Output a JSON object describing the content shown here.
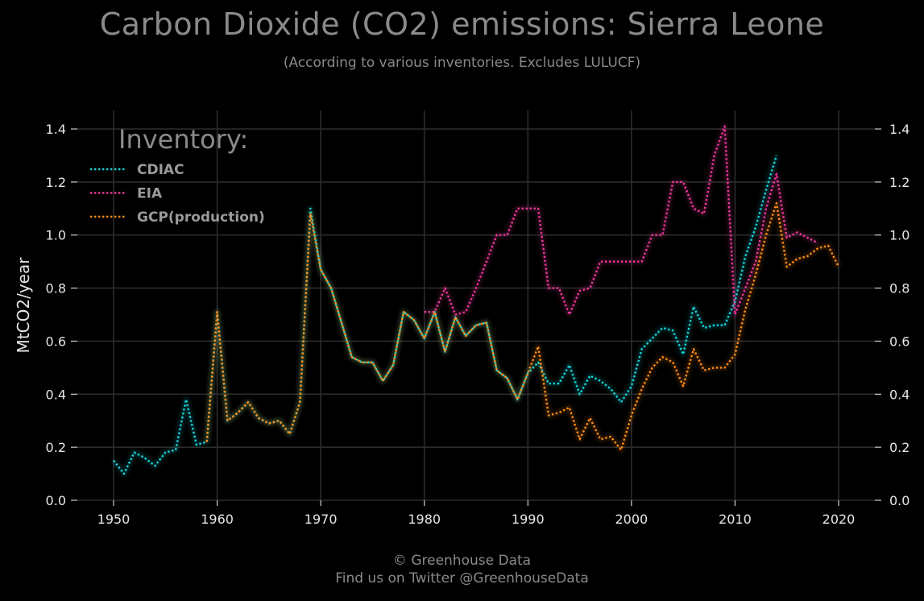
{
  "title": "Carbon Dioxide (CO2) emissions: Sierra Leone",
  "subtitle": "(According to various inventories. Excludes LULUCF)",
  "footer": {
    "line1": "© Greenhouse Data",
    "line2": "Find us on Twitter @GreenhouseData"
  },
  "chart_data": {
    "type": "line",
    "ylabel": "MtCO2/year",
    "xlim": [
      1946.5,
      2023.5
    ],
    "ylim": [
      0.0,
      1.47
    ],
    "x_ticks": [
      1950,
      1960,
      1970,
      1980,
      1990,
      2000,
      2010,
      2020
    ],
    "y_ticks": [
      0.0,
      0.2,
      0.4,
      0.6,
      0.8,
      1.0,
      1.2,
      1.4
    ],
    "y_tick_labels": [
      "0.0",
      "0.2",
      "0.4",
      "0.6",
      "0.8",
      "1.0",
      "1.2",
      "1.4"
    ],
    "grid": true,
    "legend": {
      "title": "Inventory:",
      "placement": "top-left"
    },
    "series": [
      {
        "name": "CDIAC",
        "color": "#17d4d8",
        "x": [
          1950,
          1951,
          1952,
          1953,
          1954,
          1955,
          1956,
          1957,
          1958,
          1959,
          1960,
          1961,
          1962,
          1963,
          1964,
          1965,
          1966,
          1967,
          1968,
          1969,
          1970,
          1971,
          1972,
          1973,
          1974,
          1975,
          1976,
          1977,
          1978,
          1979,
          1980,
          1981,
          1982,
          1983,
          1984,
          1985,
          1986,
          1987,
          1988,
          1989,
          1990,
          1991,
          1992,
          1993,
          1994,
          1995,
          1996,
          1997,
          1998,
          1999,
          2000,
          2001,
          2002,
          2003,
          2004,
          2005,
          2006,
          2007,
          2008,
          2009,
          2010,
          2011,
          2012,
          2013,
          2014
        ],
        "values": [
          0.15,
          0.1,
          0.18,
          0.16,
          0.13,
          0.18,
          0.19,
          0.38,
          0.21,
          0.22,
          0.71,
          0.3,
          0.33,
          0.37,
          0.31,
          0.29,
          0.3,
          0.25,
          0.37,
          1.1,
          0.87,
          0.8,
          0.67,
          0.54,
          0.52,
          0.52,
          0.45,
          0.51,
          0.71,
          0.68,
          0.61,
          0.71,
          0.56,
          0.69,
          0.62,
          0.66,
          0.67,
          0.49,
          0.46,
          0.38,
          0.48,
          0.52,
          0.44,
          0.44,
          0.51,
          0.4,
          0.47,
          0.45,
          0.42,
          0.37,
          0.43,
          0.57,
          0.61,
          0.65,
          0.64,
          0.55,
          0.73,
          0.65,
          0.66,
          0.66,
          0.75,
          0.92,
          1.03,
          1.17,
          1.3
        ]
      },
      {
        "name": "EIA",
        "color": "#f0359d",
        "x": [
          1980,
          1981,
          1982,
          1983,
          1984,
          1985,
          1986,
          1987,
          1988,
          1989,
          1990,
          1991,
          1992,
          1993,
          1994,
          1995,
          1996,
          1997,
          1998,
          1999,
          2000,
          2001,
          2002,
          2003,
          2004,
          2005,
          2006,
          2007,
          2008,
          2009,
          2010,
          2011,
          2012,
          2013,
          2014,
          2015,
          2016,
          2017,
          2018
        ],
        "values": [
          0.71,
          0.71,
          0.8,
          0.7,
          0.71,
          0.8,
          0.9,
          1.0,
          1.0,
          1.1,
          1.1,
          1.1,
          0.8,
          0.8,
          0.7,
          0.79,
          0.8,
          0.9,
          0.9,
          0.9,
          0.9,
          0.9,
          1.0,
          1.0,
          1.2,
          1.2,
          1.1,
          1.08,
          1.3,
          1.41,
          0.7,
          0.8,
          0.9,
          1.1,
          1.23,
          0.99,
          1.01,
          0.99,
          0.97
        ]
      },
      {
        "name": "GCP(production)",
        "color": "#ff8c1a",
        "x": [
          1959,
          1960,
          1961,
          1962,
          1963,
          1964,
          1965,
          1966,
          1967,
          1968,
          1969,
          1970,
          1971,
          1972,
          1973,
          1974,
          1975,
          1976,
          1977,
          1978,
          1979,
          1980,
          1981,
          1982,
          1983,
          1984,
          1985,
          1986,
          1987,
          1988,
          1989,
          1990,
          1991,
          1992,
          1993,
          1994,
          1995,
          1996,
          1997,
          1998,
          1999,
          2000,
          2001,
          2002,
          2003,
          2004,
          2005,
          2006,
          2007,
          2008,
          2009,
          2010,
          2011,
          2012,
          2013,
          2014,
          2015,
          2016,
          2017,
          2018,
          2019,
          2020
        ],
        "values": [
          0.22,
          0.71,
          0.3,
          0.33,
          0.37,
          0.31,
          0.29,
          0.3,
          0.25,
          0.37,
          1.08,
          0.87,
          0.8,
          0.67,
          0.54,
          0.52,
          0.52,
          0.45,
          0.51,
          0.71,
          0.68,
          0.61,
          0.71,
          0.56,
          0.69,
          0.62,
          0.66,
          0.67,
          0.49,
          0.46,
          0.38,
          0.48,
          0.58,
          0.32,
          0.33,
          0.35,
          0.23,
          0.31,
          0.23,
          0.24,
          0.19,
          0.32,
          0.42,
          0.5,
          0.54,
          0.52,
          0.43,
          0.57,
          0.49,
          0.5,
          0.5,
          0.55,
          0.72,
          0.85,
          1.0,
          1.12,
          0.88,
          0.91,
          0.92,
          0.95,
          0.96,
          0.88
        ]
      }
    ]
  }
}
